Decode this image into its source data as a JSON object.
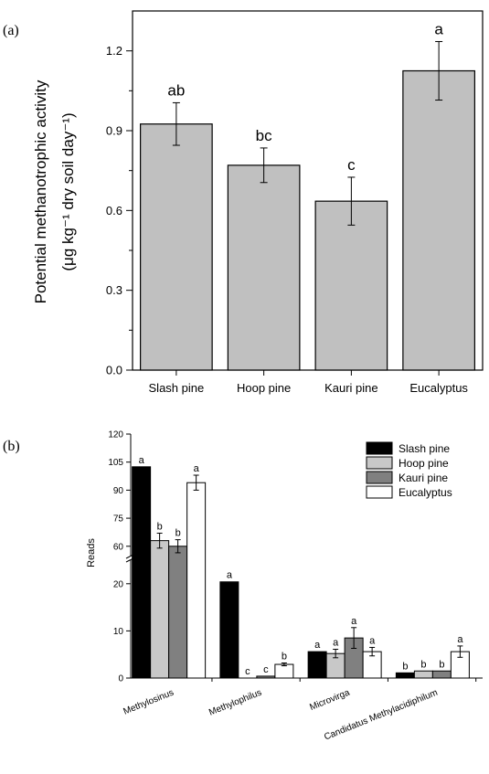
{
  "panel_labels": [
    "(a)",
    "(b)"
  ],
  "chart_data": [
    {
      "type": "bar",
      "panel": "(a)",
      "title": "",
      "ylabel_main": "Potential methanotrophic activity",
      "ylabel_units": "(μg kg⁻¹ dry soil day⁻¹)",
      "categories": [
        "Slash pine",
        "Hoop pine",
        "Kauri pine",
        "Eucalyptus"
      ],
      "values": [
        0.925,
        0.77,
        0.635,
        1.125
      ],
      "errors": [
        0.08,
        0.065,
        0.09,
        0.11
      ],
      "significance": [
        "ab",
        "bc",
        "c",
        "a"
      ],
      "ylim": [
        0,
        1.35
      ],
      "yticks": [
        "0.0",
        "0.3",
        "0.6",
        "0.9",
        "1.2"
      ],
      "grid": false,
      "bar_color": "#c0c0c0"
    },
    {
      "type": "bar",
      "panel": "(b)",
      "title": "",
      "ylabel": "Reads",
      "categories": [
        "Methylosinus",
        "Methylophilus",
        "Microvirga",
        "Candidatus Methylacidiphilum"
      ],
      "series": [
        {
          "name": "Slash pine",
          "color": "#000000",
          "values": [
            102.5,
            20.4,
            5.6,
            1.1
          ],
          "errors": [
            0,
            0,
            0,
            0
          ],
          "significance": [
            "a",
            "a",
            "a",
            "b"
          ]
        },
        {
          "name": "Hoop pine",
          "color": "#c8c8c8",
          "values": [
            63,
            0,
            5.2,
            1.5
          ],
          "errors": [
            4,
            0,
            0.9,
            0
          ],
          "significance": [
            "b",
            "c",
            "a",
            "b"
          ]
        },
        {
          "name": "Kauri pine",
          "color": "#808080",
          "values": [
            60,
            0.4,
            8.5,
            1.5
          ],
          "errors": [
            3.5,
            0,
            2.2,
            0
          ],
          "significance": [
            "b",
            "c",
            "a",
            "b"
          ]
        },
        {
          "name": "Eucalyptus",
          "color": "#ffffff",
          "values": [
            94,
            2.9,
            5.6,
            5.6
          ],
          "errors": [
            4,
            0.3,
            0.9,
            1.2
          ],
          "significance": [
            "a",
            "b",
            "a",
            "a"
          ]
        }
      ],
      "axis_break": [
        25,
        55
      ],
      "lower_range": [
        0,
        25
      ],
      "upper_range": [
        55,
        120
      ],
      "yticks_lower": [
        "0",
        "10",
        "20"
      ],
      "yticks_upper": [
        "60",
        "75",
        "90",
        "105",
        "120"
      ],
      "legend_position": "top-right",
      "grid": false
    }
  ]
}
